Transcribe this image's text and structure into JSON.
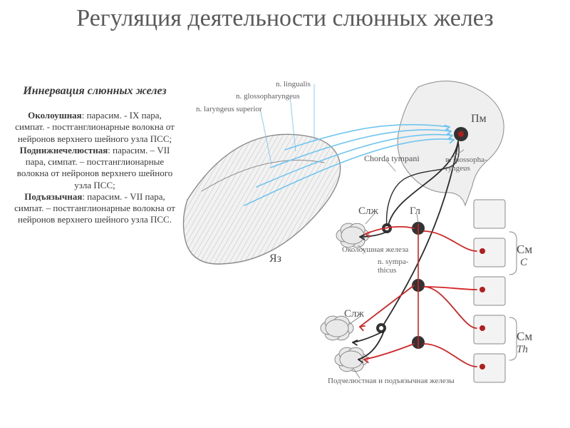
{
  "title": "Регуляция деятельности слюнных желез",
  "subhead": "Иннервация слюнных желез",
  "glands": [
    {
      "name": "Околоушная",
      "rest": ": парасим. - IX пара, симпат. - постганглионарные волокна от нейронов верхнего шейного узла ПСС;"
    },
    {
      "name": "Поднижнечелюстная",
      "rest": ": парасим. – VII пара, симпат. – постганглионарные волокна от нейронов верхнего шейного узла ПСС;"
    },
    {
      "name": "Подъязычная",
      "rest": ": парасим. - VII пара, симпат. – постганглионарные волокна от нейронов верхнего шейного узла ПСС."
    }
  ],
  "style": {
    "bg": "#ffffff",
    "title_color": "#5a5a5a",
    "text_color": "#3a3a3a",
    "tongue_fill": "#f2f2f3",
    "tongue_stroke": "#8a8a8a",
    "brain_fill": "#efefef",
    "brain_stroke": "#8a8a8a",
    "gland_fill": "#e9e9ea",
    "gland_stroke": "#8a8a8a",
    "spine_fill": "#f3f3f3",
    "spine_stroke": "#8a8a8a",
    "afferent": "#6fc5f0",
    "para": "#2b2b2b",
    "symp": "#d02626",
    "ganglion": "#333333",
    "dot": "#b21e1e",
    "line_w": 1.8
  },
  "labels": {
    "lingualis": "n. lingualis",
    "glossoph": "n. glossopharyngeus",
    "laryngeus": "n. laryngeus superior",
    "chorda": "Chorda tympani",
    "nglossoph2": "n. glossopha-\nryngeus",
    "sympathicus": "n. sympa-\nthicus",
    "tongue": "Яз",
    "pm": "Пм",
    "slz": "Слж",
    "gl": "Гл",
    "parotid": "Околоушная железа",
    "sub_sling": "Подчелюстная и подъязычная железы",
    "sm": "См",
    "c": "C",
    "th": "Th"
  }
}
